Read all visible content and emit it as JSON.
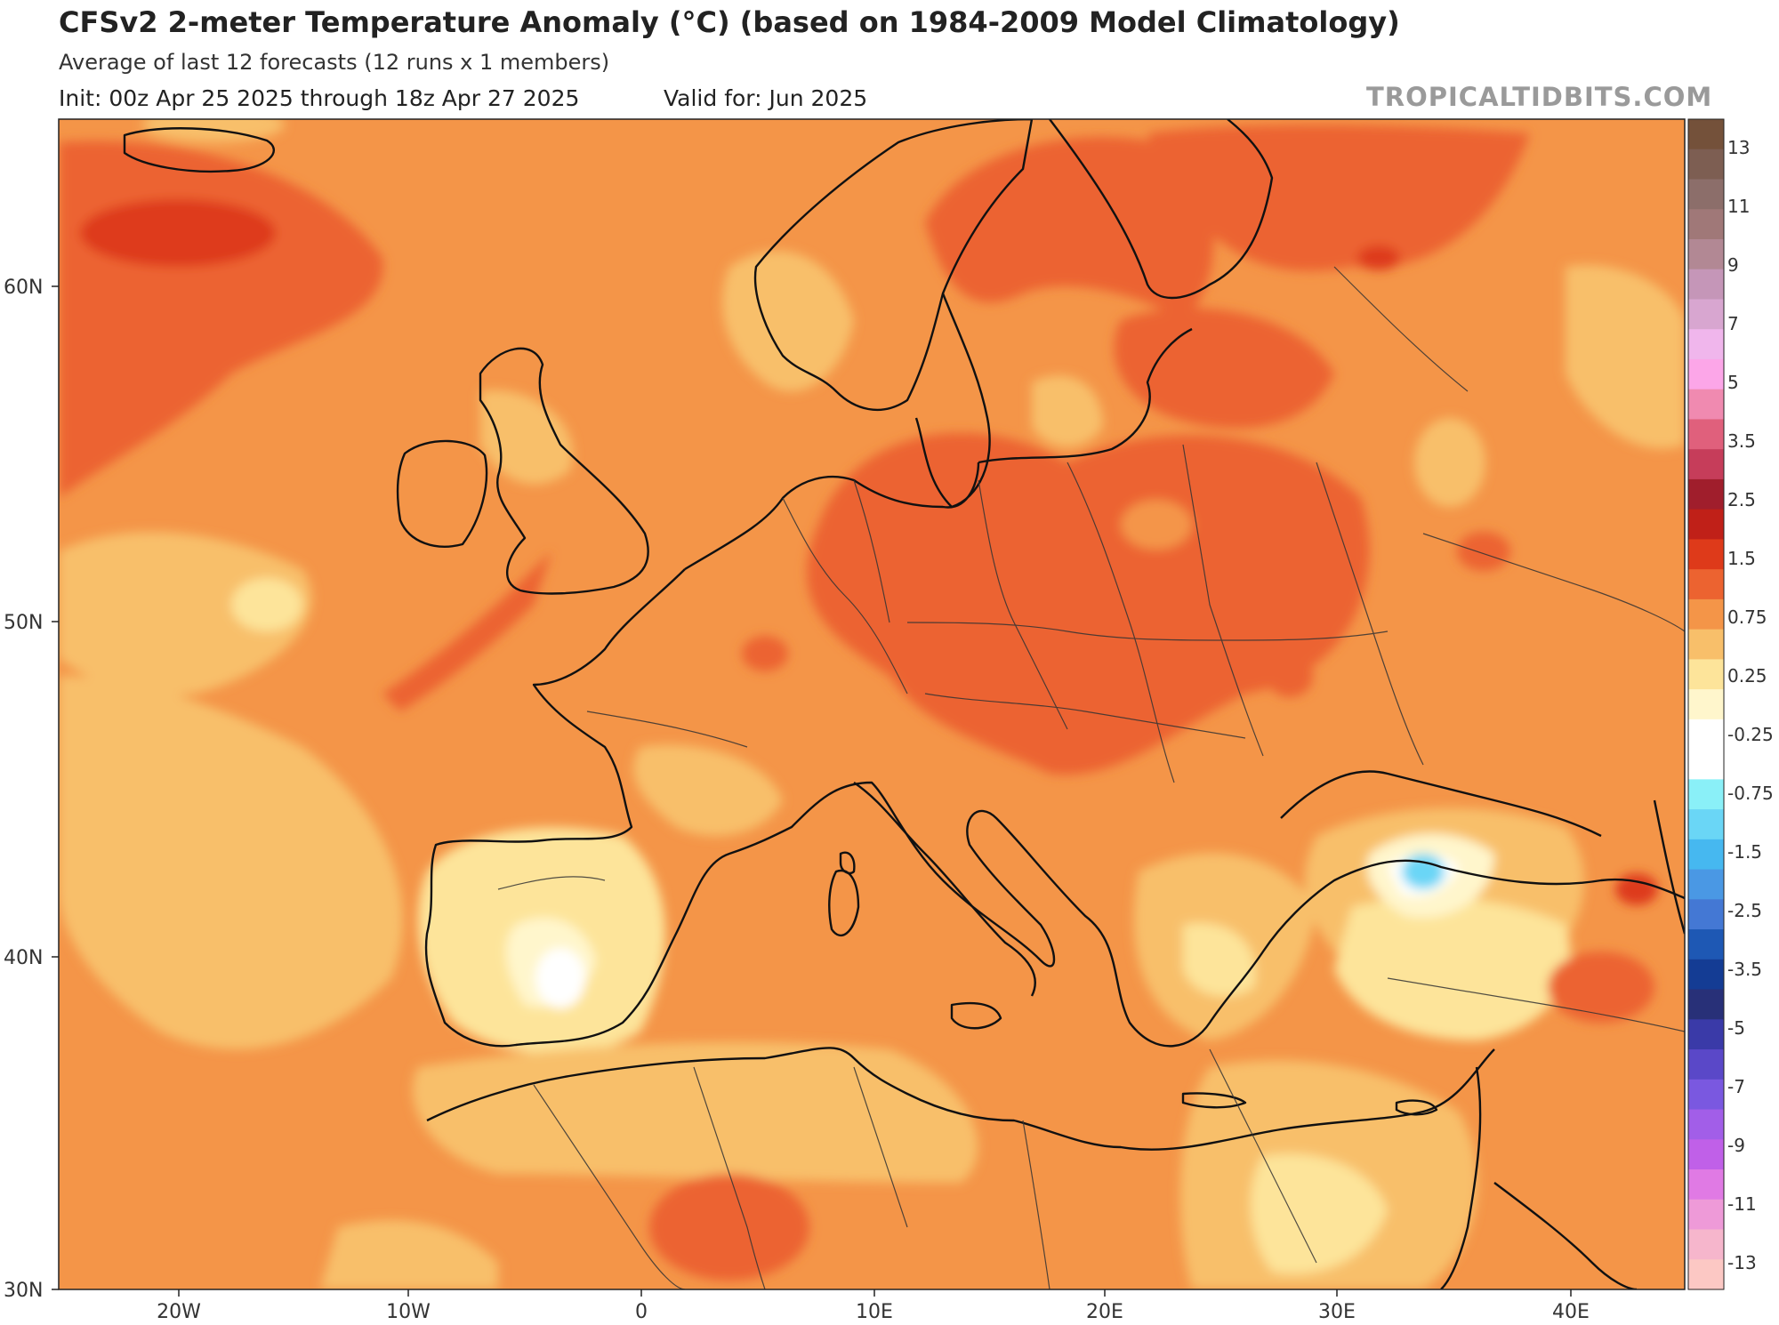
{
  "header": {
    "title": "CFSv2 2-meter Temperature Anomaly (°C) (based on 1984-2009 Model Climatology)",
    "subtitle": "Average of last 12 forecasts (12 runs x 1 members)",
    "init": "Init: 00z Apr 25 2025 through 18z Apr 27 2025",
    "valid": "Valid for: Jun 2025",
    "watermark": "TROPICALTIDBITS.COM"
  },
  "map": {
    "lon_labels": [
      "20W",
      "10W",
      "0",
      "10E",
      "20E",
      "30E",
      "40E"
    ],
    "lat_labels": [
      "60N",
      "50N",
      "40N",
      "30N"
    ]
  },
  "colorbar": {
    "labels": [
      "13",
      "11",
      "9",
      "7",
      "5",
      "3.5",
      "2.5",
      "1.5",
      "0.75",
      "0.25",
      "-0.25",
      "-0.75",
      "-1.5",
      "-2.5",
      "-3.5",
      "-5",
      "-7",
      "-9",
      "-11",
      "-13"
    ],
    "colors": [
      "#74513a",
      "#7d5e52",
      "#8c6e6a",
      "#a07878",
      "#b28894",
      "#c596b8",
      "#d8a6d0",
      "#f0b6ec",
      "#fca6e8",
      "#f08ab0",
      "#e0607c",
      "#c63d5a",
      "#a01e2c",
      "#c02018",
      "#de3a1a",
      "#ec6330",
      "#f49548",
      "#f8bf6a",
      "#fde49a",
      "#fff6cc",
      "#ffffff",
      "#ffffff",
      "#8af0f8",
      "#6ad6f6",
      "#46b8f0",
      "#4a98e4",
      "#4478d4",
      "#1e58b4",
      "#143c94",
      "#283078",
      "#3a3aa8",
      "#5a48c8",
      "#7a58e0",
      "#a25ee8",
      "#c060e8",
      "#e07ae4",
      "#ee9ad8",
      "#f6b6cc",
      "#fcc8c4"
    ]
  }
}
